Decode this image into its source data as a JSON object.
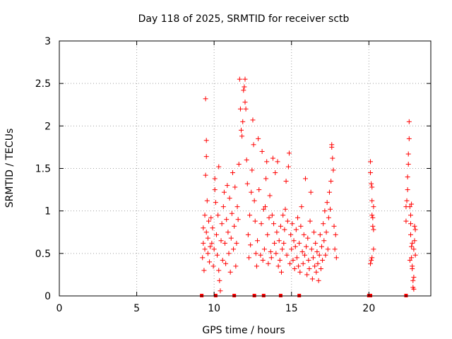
{
  "chart_data": {
    "type": "scatter",
    "title": "Day 118 of 2025, SRMTID for receiver sctb",
    "xlabel": "GPS time / hours",
    "ylabel": "SRMTID / TECUs",
    "xlim": [
      0,
      24
    ],
    "ylim": [
      0,
      3
    ],
    "xticks": [
      0,
      5,
      10,
      15,
      20
    ],
    "yticks": [
      0,
      0.5,
      1,
      1.5,
      2,
      2.5,
      3
    ],
    "xtick_labels": [
      "0",
      "5",
      "10",
      "15",
      "20"
    ],
    "ytick_labels": [
      "0",
      "0.5",
      "1",
      "1.5",
      "2",
      "2.5",
      "3"
    ],
    "grid": true,
    "marker": "+",
    "color": "#ff0000",
    "series": [
      {
        "name": "SRMTID",
        "points": [
          [
            9.3,
            0.62
          ],
          [
            9.3,
            0.8
          ],
          [
            9.25,
            0.45
          ],
          [
            9.35,
            0.3
          ],
          [
            9.4,
            0.55
          ],
          [
            9.4,
            0.95
          ],
          [
            9.45,
            1.42
          ],
          [
            9.5,
            0.75
          ],
          [
            9.45,
            2.32
          ],
          [
            9.5,
            1.83
          ],
          [
            9.5,
            1.64
          ],
          [
            9.55,
            1.12
          ],
          [
            9.6,
            0.5
          ],
          [
            9.6,
            0.68
          ],
          [
            9.65,
            0.88
          ],
          [
            9.7,
            0.4
          ],
          [
            9.75,
            0.58
          ],
          [
            9.8,
            0.92
          ],
          [
            9.85,
            0.62
          ],
          [
            9.9,
            0.8
          ],
          [
            9.95,
            0.35
          ],
          [
            10.0,
            0.55
          ],
          [
            10.05,
            1.25
          ],
          [
            10.05,
            1.38
          ],
          [
            10.1,
            1.1
          ],
          [
            10.15,
            0.72
          ],
          [
            10.2,
            0.48
          ],
          [
            10.25,
            0.95
          ],
          [
            10.3,
            1.52
          ],
          [
            10.3,
            0.3
          ],
          [
            10.35,
            0.18
          ],
          [
            10.4,
            0.06
          ],
          [
            10.45,
            0.65
          ],
          [
            10.5,
            0.85
          ],
          [
            10.55,
            0.42
          ],
          [
            10.6,
            1.05
          ],
          [
            10.65,
            1.22
          ],
          [
            10.7,
            0.62
          ],
          [
            10.75,
            0.38
          ],
          [
            10.8,
            0.9
          ],
          [
            10.85,
            1.3
          ],
          [
            10.9,
            0.75
          ],
          [
            10.95,
            0.5
          ],
          [
            11.0,
            1.15
          ],
          [
            11.05,
            0.28
          ],
          [
            11.1,
            0.68
          ],
          [
            11.15,
            0.97
          ],
          [
            11.2,
            1.45
          ],
          [
            11.25,
            0.55
          ],
          [
            11.3,
            0.82
          ],
          [
            11.35,
            1.28
          ],
          [
            11.4,
            0.35
          ],
          [
            11.45,
            0.62
          ],
          [
            11.5,
            1.05
          ],
          [
            11.55,
            0.9
          ],
          [
            11.6,
            1.55
          ],
          [
            11.65,
            2.55
          ],
          [
            11.7,
            2.2
          ],
          [
            11.75,
            1.95
          ],
          [
            11.8,
            1.88
          ],
          [
            11.85,
            2.05
          ],
          [
            11.9,
            2.42
          ],
          [
            11.95,
            2.46
          ],
          [
            12.0,
            2.55
          ],
          [
            12.0,
            2.28
          ],
          [
            12.05,
            2.2
          ],
          [
            12.1,
            1.6
          ],
          [
            12.15,
            1.32
          ],
          [
            12.2,
            0.72
          ],
          [
            12.25,
            0.45
          ],
          [
            12.3,
            0.95
          ],
          [
            12.35,
            0.6
          ],
          [
            12.4,
            1.22
          ],
          [
            12.45,
            1.48
          ],
          [
            12.5,
            2.07
          ],
          [
            12.55,
            1.78
          ],
          [
            12.6,
            1.12
          ],
          [
            12.65,
            0.88
          ],
          [
            12.7,
            0.5
          ],
          [
            12.75,
            0.35
          ],
          [
            12.8,
            0.65
          ],
          [
            12.85,
            1.85
          ],
          [
            12.9,
            1.25
          ],
          [
            13.0,
            0.48
          ],
          [
            13.05,
            0.85
          ],
          [
            13.1,
            1.7
          ],
          [
            13.15,
            0.42
          ],
          [
            13.2,
            1.02
          ],
          [
            13.25,
            0.55
          ],
          [
            13.3,
            1.05
          ],
          [
            13.35,
            1.38
          ],
          [
            13.4,
            1.58
          ],
          [
            13.45,
            0.72
          ],
          [
            13.5,
            0.38
          ],
          [
            13.55,
            0.92
          ],
          [
            13.6,
            1.18
          ],
          [
            13.65,
            0.52
          ],
          [
            13.7,
            0.45
          ],
          [
            13.75,
            0.95
          ],
          [
            13.8,
            1.62
          ],
          [
            13.85,
            0.85
          ],
          [
            13.9,
            0.62
          ],
          [
            13.95,
            1.45
          ],
          [
            14.0,
            0.5
          ],
          [
            14.05,
            0.75
          ],
          [
            14.1,
            1.58
          ],
          [
            14.15,
            0.35
          ],
          [
            14.2,
            0.65
          ],
          [
            14.25,
            0.42
          ],
          [
            14.3,
            0.82
          ],
          [
            14.35,
            0.28
          ],
          [
            14.4,
            0.55
          ],
          [
            14.45,
            0.95
          ],
          [
            14.5,
            0.62
          ],
          [
            14.55,
            0.78
          ],
          [
            14.6,
            1.02
          ],
          [
            14.65,
            1.35
          ],
          [
            14.7,
            0.48
          ],
          [
            14.75,
            0.88
          ],
          [
            14.8,
            1.52
          ],
          [
            14.85,
            1.68
          ],
          [
            14.9,
            0.38
          ],
          [
            14.95,
            0.72
          ],
          [
            15.0,
            0.55
          ],
          [
            15.05,
            0.85
          ],
          [
            15.1,
            0.42
          ],
          [
            15.15,
            0.65
          ],
          [
            15.2,
            0.32
          ],
          [
            15.25,
            0.58
          ],
          [
            15.3,
            0.78
          ],
          [
            15.35,
            0.45
          ],
          [
            15.4,
            0.92
          ],
          [
            15.45,
            0.35
          ],
          [
            15.5,
            0.62
          ],
          [
            15.55,
            0.28
          ],
          [
            15.6,
            0.82
          ],
          [
            15.65,
            1.05
          ],
          [
            15.7,
            0.52
          ],
          [
            15.75,
            0.38
          ],
          [
            15.8,
            0.72
          ],
          [
            15.85,
            0.48
          ],
          [
            15.9,
            1.38
          ],
          [
            15.95,
            0.58
          ],
          [
            16.0,
            0.25
          ],
          [
            16.05,
            0.68
          ],
          [
            16.1,
            0.42
          ],
          [
            16.15,
            0.32
          ],
          [
            16.2,
            0.88
          ],
          [
            16.25,
            1.22
          ],
          [
            16.3,
            0.55
          ],
          [
            16.35,
            0.2
          ],
          [
            16.4,
            0.45
          ],
          [
            16.45,
            0.75
          ],
          [
            16.5,
            0.35
          ],
          [
            16.55,
            0.62
          ],
          [
            16.6,
            0.28
          ],
          [
            16.65,
            0.52
          ],
          [
            16.7,
            0.38
          ],
          [
            16.75,
            0.18
          ],
          [
            16.8,
            0.48
          ],
          [
            16.85,
            0.72
          ],
          [
            16.9,
            0.32
          ],
          [
            16.95,
            0.58
          ],
          [
            17.0,
            0.42
          ],
          [
            17.05,
            0.85
          ],
          [
            17.1,
            0.65
          ],
          [
            17.15,
            1.0
          ],
          [
            17.2,
            0.48
          ],
          [
            17.25,
            0.75
          ],
          [
            17.3,
            1.1
          ],
          [
            17.35,
            0.55
          ],
          [
            17.4,
            0.92
          ],
          [
            17.45,
            1.22
          ],
          [
            17.5,
            1.02
          ],
          [
            17.55,
            1.35
          ],
          [
            17.6,
            1.78
          ],
          [
            17.6,
            1.75
          ],
          [
            17.65,
            1.62
          ],
          [
            17.7,
            1.48
          ],
          [
            17.75,
            0.82
          ],
          [
            17.8,
            0.55
          ],
          [
            17.85,
            0.72
          ],
          [
            17.9,
            0.45
          ],
          [
            20.1,
            1.58
          ],
          [
            20.1,
            1.45
          ],
          [
            20.15,
            1.32
          ],
          [
            20.2,
            1.12
          ],
          [
            20.2,
            0.95
          ],
          [
            20.25,
            0.82
          ],
          [
            20.3,
            0.78
          ],
          [
            20.3,
            0.55
          ],
          [
            20.15,
            0.42
          ],
          [
            20.1,
            0.38
          ],
          [
            20.2,
            0.45
          ],
          [
            20.25,
            0.92
          ],
          [
            20.3,
            1.05
          ],
          [
            20.2,
            1.28
          ],
          [
            22.4,
            1.05
          ],
          [
            22.4,
            0.88
          ],
          [
            22.45,
            1.12
          ],
          [
            22.5,
            1.25
          ],
          [
            22.5,
            1.4
          ],
          [
            22.55,
            1.55
          ],
          [
            22.55,
            1.67
          ],
          [
            22.6,
            1.85
          ],
          [
            22.6,
            2.05
          ],
          [
            22.65,
            1.05
          ],
          [
            22.7,
            0.95
          ],
          [
            22.7,
            0.72
          ],
          [
            22.75,
            0.58
          ],
          [
            22.75,
            0.45
          ],
          [
            22.8,
            0.35
          ],
          [
            22.8,
            0.32
          ],
          [
            22.85,
            0.18
          ],
          [
            22.85,
            0.1
          ],
          [
            22.9,
            0.08
          ],
          [
            22.9,
            0.55
          ],
          [
            22.95,
            0.65
          ],
          [
            22.95,
            0.82
          ],
          [
            23.0,
            0.78
          ],
          [
            22.65,
            0.42
          ],
          [
            22.7,
            0.85
          ],
          [
            22.75,
            1.08
          ],
          [
            22.8,
            0.62
          ],
          [
            22.9,
            0.22
          ],
          [
            23.0,
            0.48
          ]
        ]
      }
    ],
    "baseline_markers": [
      9.2,
      10.1,
      11.3,
      12.6,
      13.2,
      14.3,
      15.5,
      20.0,
      20.1,
      22.4
    ]
  }
}
